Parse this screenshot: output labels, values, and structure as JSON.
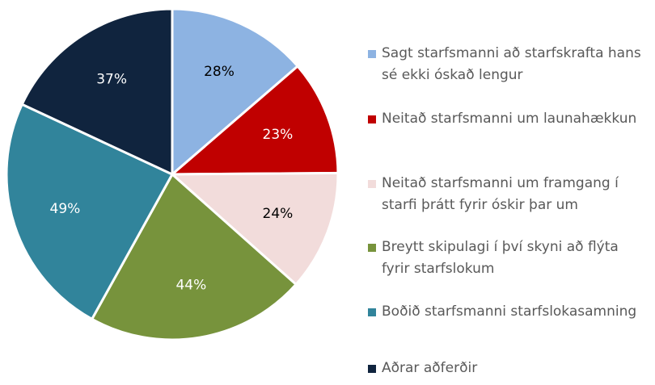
{
  "chart_data": {
    "type": "pie",
    "categories": [
      "Sagt starfsmanni að starfskrafta hans sé ekki óskað lengur",
      "Neitað starfsmanni um launahækkun",
      "Neitað starfsmanni um framgang í starfi þrátt fyrir óskir þar um",
      "Breytt skipulagi í því skyni að flýta fyrir starfslokum",
      "Boðið starfsmanni starfslokasamning",
      "Aðrar aðferðir"
    ],
    "values": [
      28,
      23,
      24,
      44,
      49,
      37
    ],
    "value_labels": [
      "28%",
      "23%",
      "24%",
      "44%",
      "49%",
      "37%"
    ],
    "colors": [
      "#8db3e2",
      "#c00000",
      "#f2dcdb",
      "#77933c",
      "#31849b",
      "#10243e"
    ],
    "legend": "right"
  }
}
